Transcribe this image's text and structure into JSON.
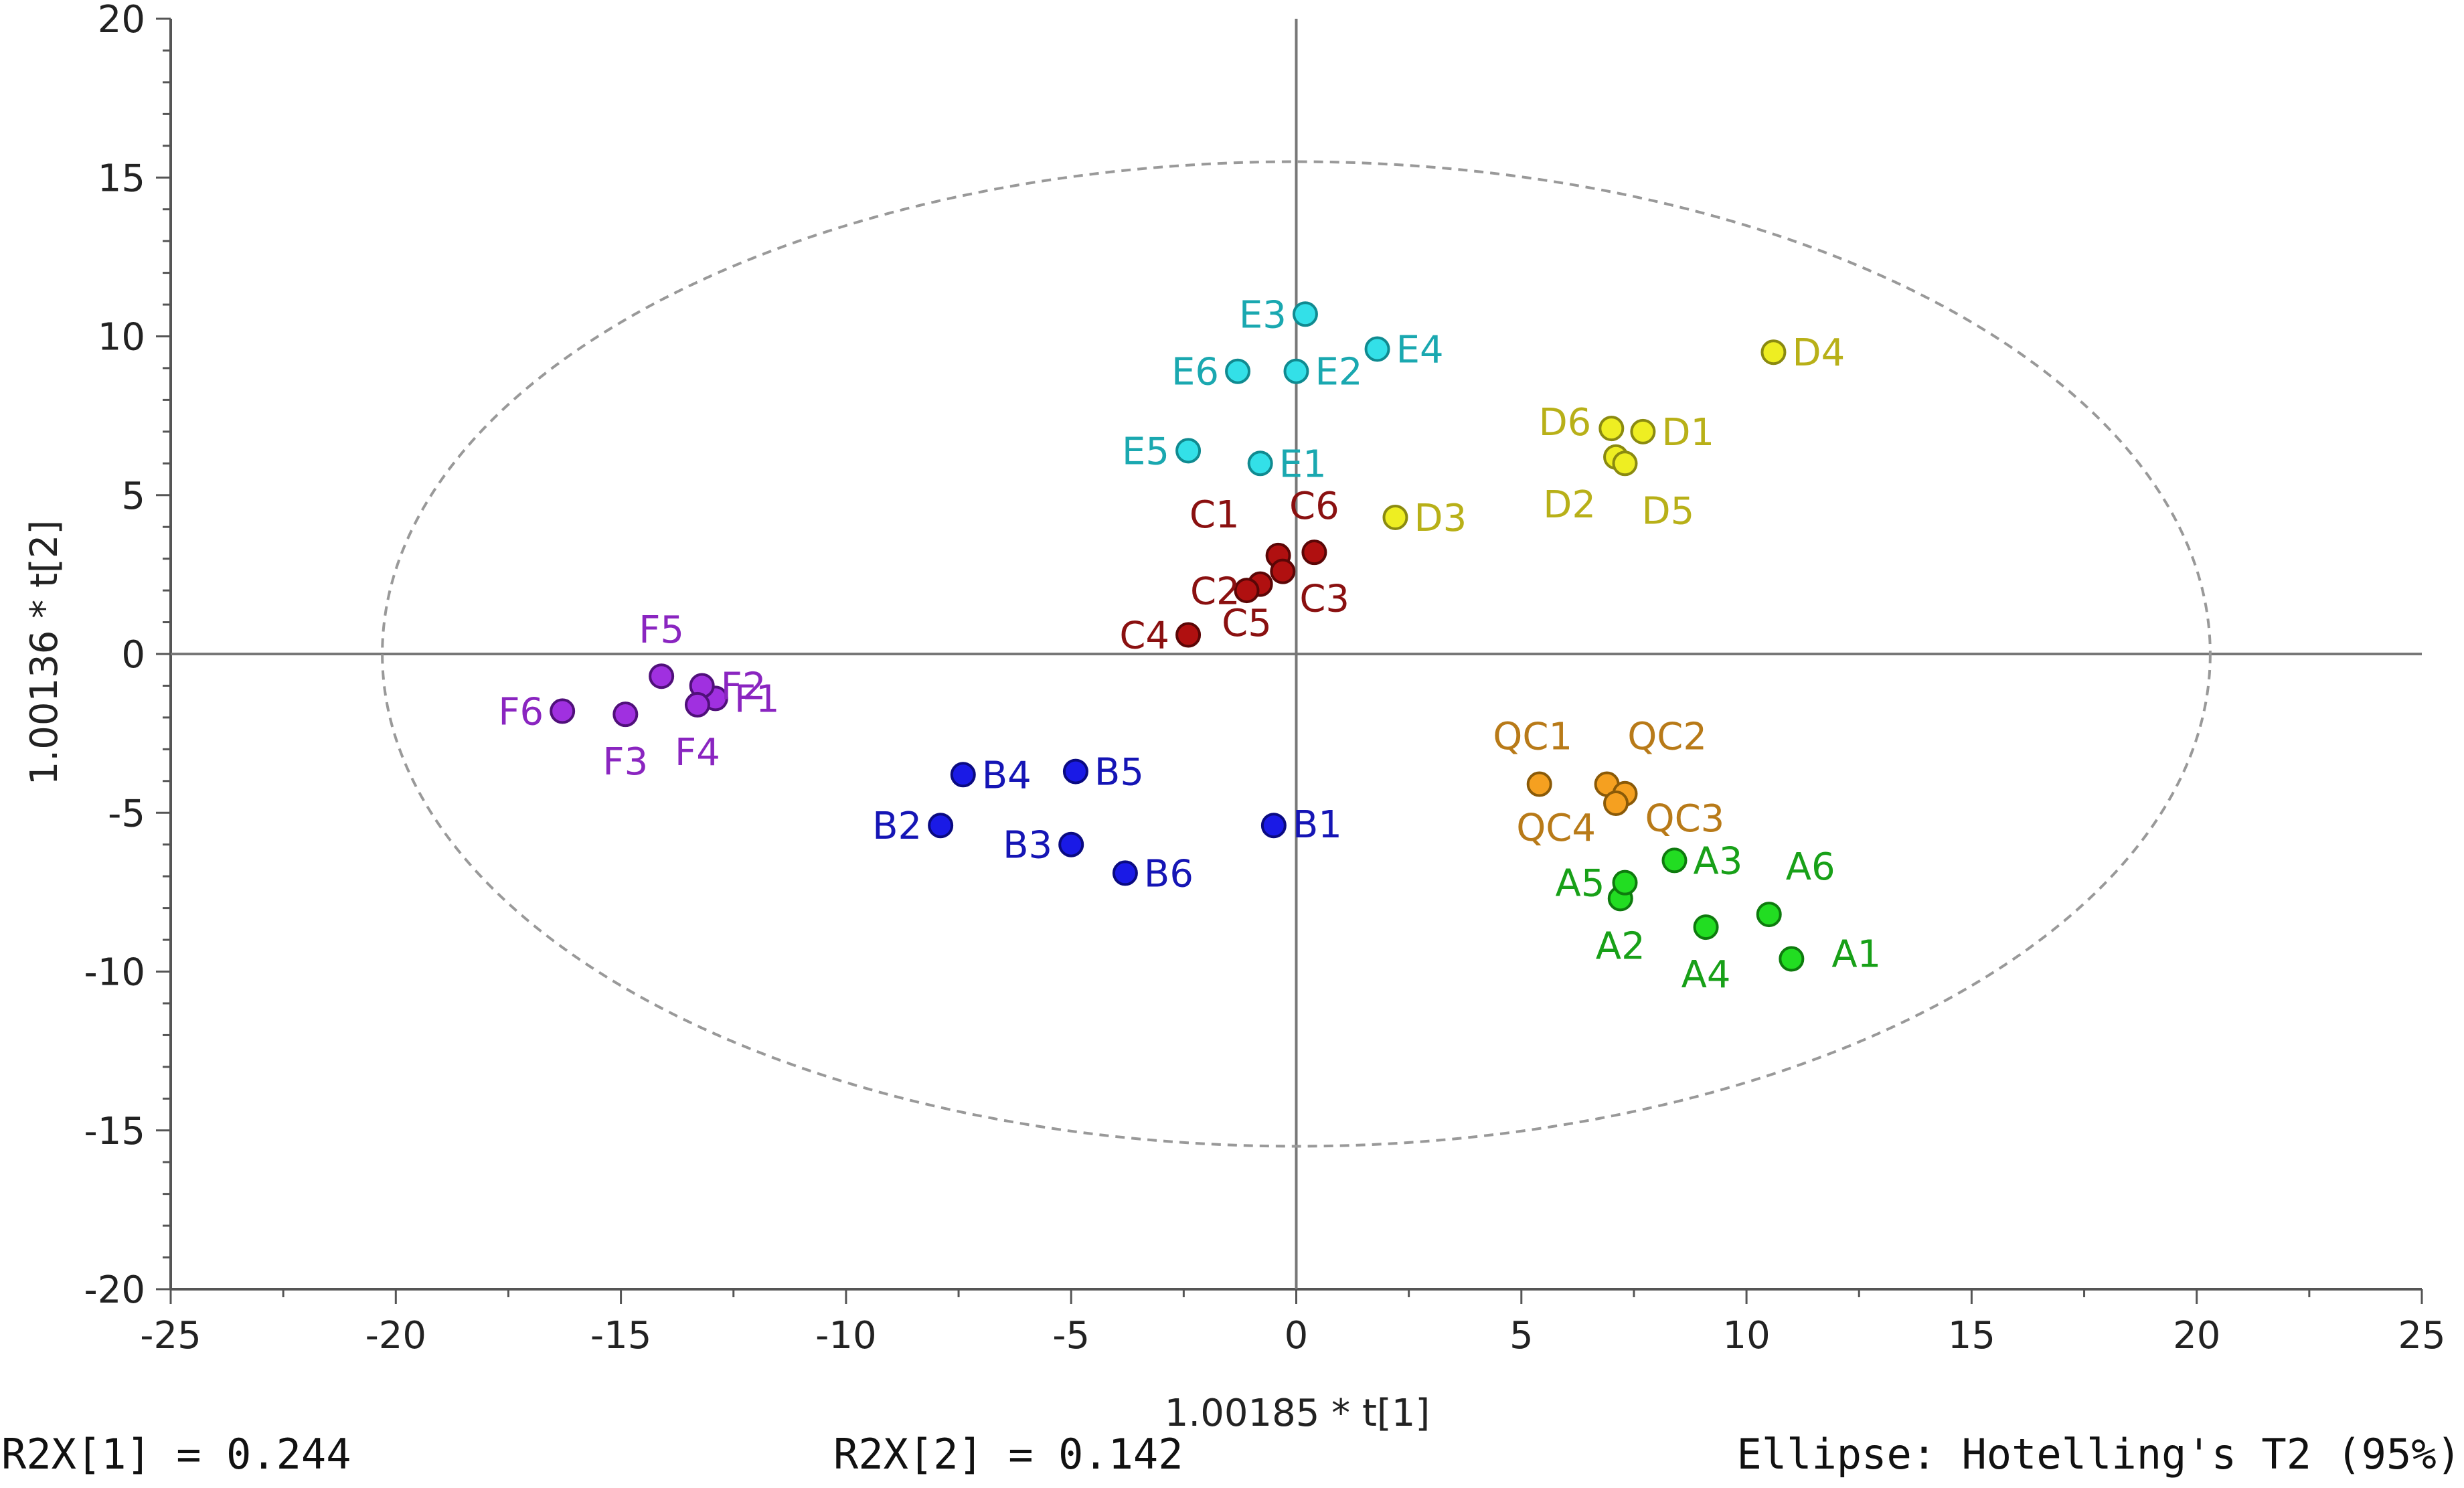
{
  "chart_data": {
    "type": "scatter",
    "title": "",
    "xlabel": "1.00185 * t[1]",
    "ylabel": "1.00136 * t[2]",
    "xlim": [
      -25,
      25
    ],
    "ylim": [
      -20,
      20
    ],
    "x_ticks": [
      "-25",
      "-20",
      "-15",
      "-10",
      "-5",
      "0",
      "5",
      "10",
      "15",
      "20",
      "25"
    ],
    "y_ticks": [
      "20",
      "15",
      "10",
      "5",
      "0",
      "-5",
      "-10",
      "-15",
      "-20"
    ],
    "ellipse": {
      "x_radius": 20.3,
      "y_radius": 15.5,
      "style": "dashed"
    },
    "series": [
      {
        "name": "A",
        "fill": "#22dd22",
        "edge": "#0e7a0e",
        "label_color": "#18a018",
        "points": [
          {
            "label": "A1",
            "x": 11.0,
            "y": -9.6
          },
          {
            "label": "A2",
            "x": 7.2,
            "y": -7.7
          },
          {
            "label": "A3",
            "x": 8.4,
            "y": -6.5
          },
          {
            "label": "A4",
            "x": 9.1,
            "y": -8.6
          },
          {
            "label": "A5",
            "x": 7.3,
            "y": -7.2
          },
          {
            "label": "A6",
            "x": 10.5,
            "y": -8.2
          }
        ]
      },
      {
        "name": "B",
        "fill": "#1a1ae6",
        "edge": "#0a0a80",
        "label_color": "#1515b5",
        "points": [
          {
            "label": "B1",
            "x": -0.5,
            "y": -5.4
          },
          {
            "label": "B2",
            "x": -7.9,
            "y": -5.4
          },
          {
            "label": "B3",
            "x": -5.0,
            "y": -6.0
          },
          {
            "label": "B4",
            "x": -7.4,
            "y": -3.8
          },
          {
            "label": "B5",
            "x": -4.9,
            "y": -3.7
          },
          {
            "label": "B6",
            "x": -3.8,
            "y": -6.9
          }
        ]
      },
      {
        "name": "C",
        "fill": "#b01010",
        "edge": "#5a0606",
        "label_color": "#8a1010",
        "points": [
          {
            "label": "C1",
            "x": -0.4,
            "y": 3.1
          },
          {
            "label": "C2",
            "x": -0.8,
            "y": 2.2
          },
          {
            "label": "C3",
            "x": -0.3,
            "y": 2.6
          },
          {
            "label": "C4",
            "x": -2.4,
            "y": 0.6
          },
          {
            "label": "C5",
            "x": -1.1,
            "y": 2.0
          },
          {
            "label": "C6",
            "x": 0.4,
            "y": 3.2
          }
        ]
      },
      {
        "name": "D",
        "fill": "#eeee22",
        "edge": "#8a8a10",
        "label_color": "#b8b018",
        "points": [
          {
            "label": "D1",
            "x": 7.7,
            "y": 7.0
          },
          {
            "label": "D2",
            "x": 7.1,
            "y": 6.2
          },
          {
            "label": "D3",
            "x": 2.2,
            "y": 4.3
          },
          {
            "label": "D4",
            "x": 10.6,
            "y": 9.5
          },
          {
            "label": "D5",
            "x": 7.3,
            "y": 6.0
          },
          {
            "label": "D6",
            "x": 7.0,
            "y": 7.1
          }
        ]
      },
      {
        "name": "E",
        "fill": "#33e0e8",
        "edge": "#108a90",
        "label_color": "#1aa8b0",
        "points": [
          {
            "label": "E1",
            "x": -0.8,
            "y": 6.0
          },
          {
            "label": "E2",
            "x": 0.0,
            "y": 8.9
          },
          {
            "label": "E3",
            "x": 0.2,
            "y": 10.7
          },
          {
            "label": "E4",
            "x": 1.8,
            "y": 9.6
          },
          {
            "label": "E5",
            "x": -2.4,
            "y": 6.4
          },
          {
            "label": "E6",
            "x": -1.3,
            "y": 8.9
          }
        ]
      },
      {
        "name": "F",
        "fill": "#a030e0",
        "edge": "#50107a",
        "label_color": "#8a25c0",
        "points": [
          {
            "label": "F1",
            "x": -12.9,
            "y": -1.4
          },
          {
            "label": "F2",
            "x": -13.2,
            "y": -1.0
          },
          {
            "label": "F3",
            "x": -14.9,
            "y": -1.9
          },
          {
            "label": "F4",
            "x": -13.3,
            "y": -1.6
          },
          {
            "label": "F5",
            "x": -14.1,
            "y": -0.7
          },
          {
            "label": "F6",
            "x": -16.3,
            "y": -1.8
          }
        ]
      },
      {
        "name": "QC",
        "fill": "#f5a020",
        "edge": "#8a5a08",
        "label_color": "#b87a18",
        "points": [
          {
            "label": "QC1",
            "x": 5.4,
            "y": -4.1
          },
          {
            "label": "QC2",
            "x": 6.9,
            "y": -4.1
          },
          {
            "label": "QC3",
            "x": 7.3,
            "y": -4.4
          },
          {
            "label": "QC4",
            "x": 7.1,
            "y": -4.7
          }
        ]
      }
    ]
  },
  "footer": {
    "r2x1": "R2X[1] = 0.244",
    "r2x2": "R2X[2] = 0.142",
    "ellipse_note": "Ellipse: Hotelling's T2 (95%)"
  }
}
